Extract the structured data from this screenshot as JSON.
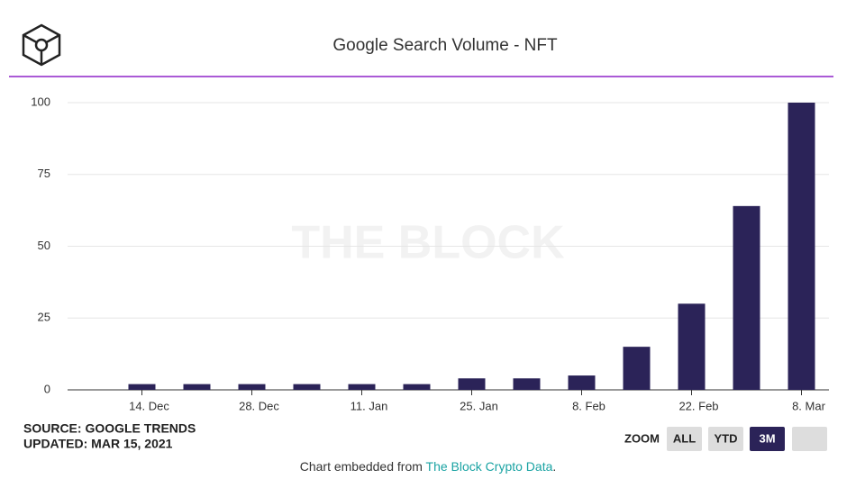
{
  "chart_data": {
    "type": "bar",
    "title": "Google Search Volume - NFT",
    "watermark": "THE BLOCK",
    "categories": [
      "14. Dec",
      null,
      "28. Dec",
      null,
      "11. Jan",
      null,
      "25. Jan",
      null,
      "8. Feb",
      null,
      "22. Feb",
      null,
      "8. Mar"
    ],
    "values": [
      2,
      2,
      2,
      2,
      2,
      2,
      4,
      4,
      5,
      15,
      30,
      64,
      100
    ],
    "color": "#2b2358",
    "ylim": [
      0,
      100
    ],
    "yticks": [
      0,
      25,
      50,
      75,
      100
    ],
    "grid": true
  },
  "source": "SOURCE: GOOGLE TRENDS",
  "updated": "UPDATED: MAR 15, 2021",
  "zoom": {
    "label": "ZOOM",
    "buttons": [
      "ALL",
      "YTD",
      "3M"
    ],
    "active": 2
  },
  "footer": {
    "text": "Chart embedded from",
    "link": "The Block Crypto Data",
    "end": "."
  }
}
